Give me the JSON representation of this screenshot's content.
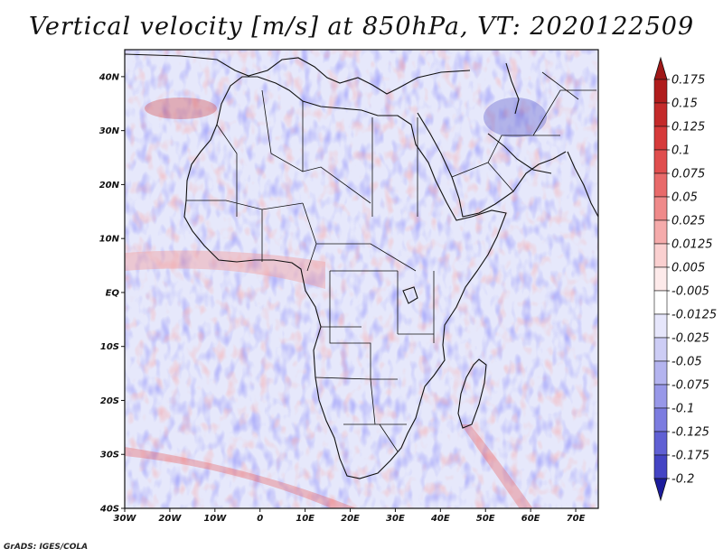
{
  "title": "Vertical velocity [m/s] at 850hPa, VT: 2020122509",
  "footer": "GrADS: IGES/COLA",
  "map": {
    "region": "Africa",
    "projection": "latlon",
    "lon_range": [
      -30,
      75
    ],
    "lat_range": [
      -40,
      45
    ],
    "lat_ticks": [
      {
        "value": 40,
        "label": "40N"
      },
      {
        "value": 30,
        "label": "30N"
      },
      {
        "value": 20,
        "label": "20N"
      },
      {
        "value": 10,
        "label": "10N"
      },
      {
        "value": 0,
        "label": "EQ"
      },
      {
        "value": -10,
        "label": "10S"
      },
      {
        "value": -20,
        "label": "20S"
      },
      {
        "value": -30,
        "label": "30S"
      },
      {
        "value": -40,
        "label": "40S"
      }
    ],
    "lon_ticks": [
      {
        "value": -30,
        "label": "30W"
      },
      {
        "value": -20,
        "label": "20W"
      },
      {
        "value": -10,
        "label": "10W"
      },
      {
        "value": 0,
        "label": "0"
      },
      {
        "value": 10,
        "label": "10E"
      },
      {
        "value": 20,
        "label": "20E"
      },
      {
        "value": 30,
        "label": "30E"
      },
      {
        "value": 40,
        "label": "40E"
      },
      {
        "value": 50,
        "label": "50E"
      },
      {
        "value": 60,
        "label": "60E"
      },
      {
        "value": 70,
        "label": "70E"
      }
    ]
  },
  "colorbar": {
    "levels": [
      {
        "label": "0.175",
        "color": "#b01c1c"
      },
      {
        "label": "0.15",
        "color": "#c42a2a"
      },
      {
        "label": "0.125",
        "color": "#d63a3a"
      },
      {
        "label": "0.1",
        "color": "#e04e4e"
      },
      {
        "label": "0.075",
        "color": "#e86a6a"
      },
      {
        "label": "0.05",
        "color": "#ef8a8a"
      },
      {
        "label": "0.025",
        "color": "#f5abab"
      },
      {
        "label": "0.0125",
        "color": "#fad0d0"
      },
      {
        "label": "0.005",
        "color": "#fdeaea"
      },
      {
        "label": "-0.005",
        "color": "#ffffff"
      },
      {
        "label": "-0.0125",
        "color": "#e6e6fb"
      },
      {
        "label": "-0.025",
        "color": "#cdcdf5"
      },
      {
        "label": "-0.05",
        "color": "#b4b4ef"
      },
      {
        "label": "-0.075",
        "color": "#9898e8"
      },
      {
        "label": "-0.1",
        "color": "#7c7ce0"
      },
      {
        "label": "-0.125",
        "color": "#6060d4"
      },
      {
        "label": "-0.175",
        "color": "#4444c4"
      },
      {
        "label": "-0.2",
        "color": "#2a2ab0"
      }
    ],
    "top_arrow_color": "#a01818",
    "bottom_arrow_color": "#1c1c9c"
  }
}
